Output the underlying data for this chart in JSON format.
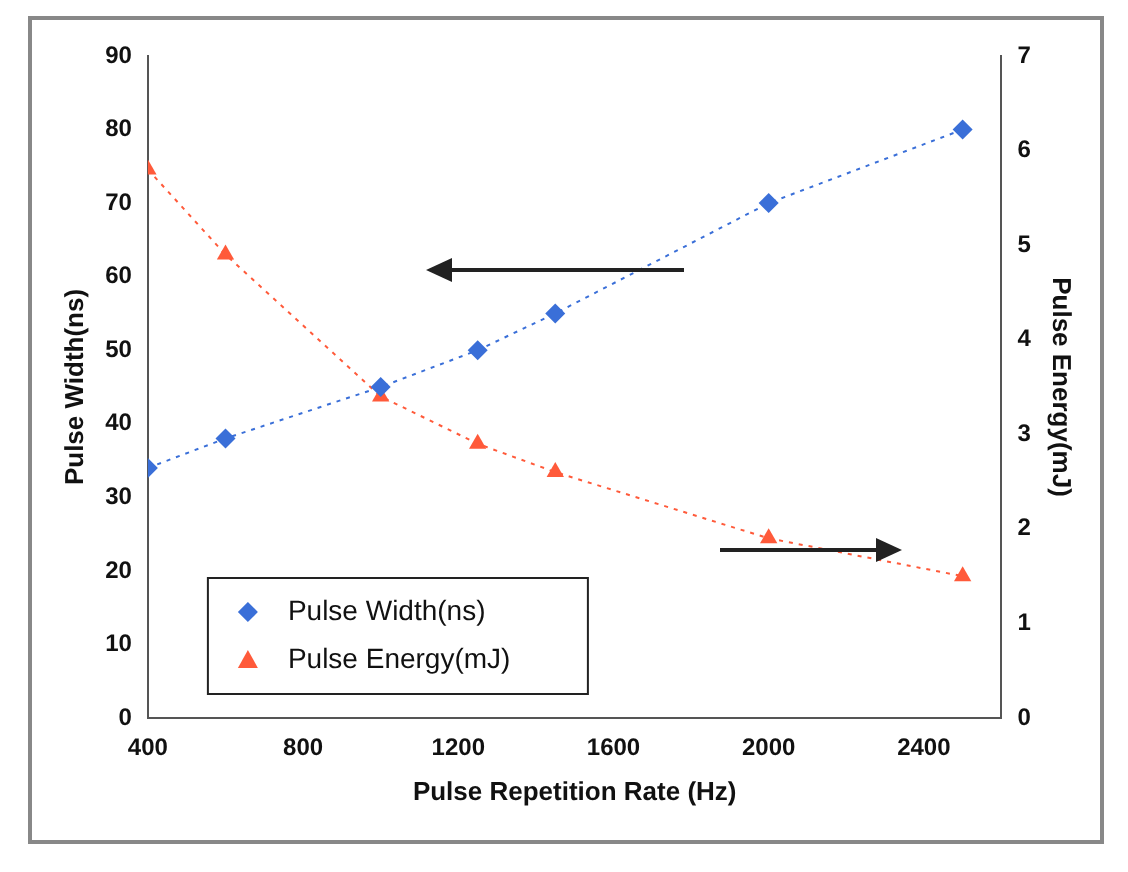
{
  "chart_data": {
    "type": "line",
    "xlabel": "Pulse Repetition Rate (Hz)",
    "ylabel": "Pulse Width(ns)",
    "y2label": "Pulse Energy(mJ)",
    "x": [
      400,
      600,
      1000,
      1250,
      1450,
      2000,
      2500
    ],
    "series": [
      {
        "name": "Pulse Width(ns)",
        "color": "#3a6fd8",
        "marker": "diamond",
        "line_style": "dotted",
        "values": [
          34,
          38,
          45,
          50,
          55,
          70,
          80
        ]
      },
      {
        "name": "Pulse Energy(mJ)",
        "color": "#ff5a3a",
        "marker": "triangle",
        "line_style": "dotted",
        "axis": "y2",
        "values": [
          5.8,
          4.9,
          3.4,
          2.9,
          2.6,
          1.9,
          1.5
        ]
      }
    ],
    "xlim": [
      400,
      2600
    ],
    "xticks": [
      400,
      800,
      1200,
      1600,
      2000,
      2400
    ],
    "ylim": [
      0,
      90
    ],
    "yticks": [
      0,
      10,
      20,
      30,
      40,
      50,
      60,
      70,
      80,
      90
    ],
    "y2lim": [
      0,
      7
    ],
    "y2ticks": [
      0,
      1,
      2,
      3,
      4,
      5,
      6,
      7
    ],
    "grid": false,
    "legend": "bottom left"
  }
}
